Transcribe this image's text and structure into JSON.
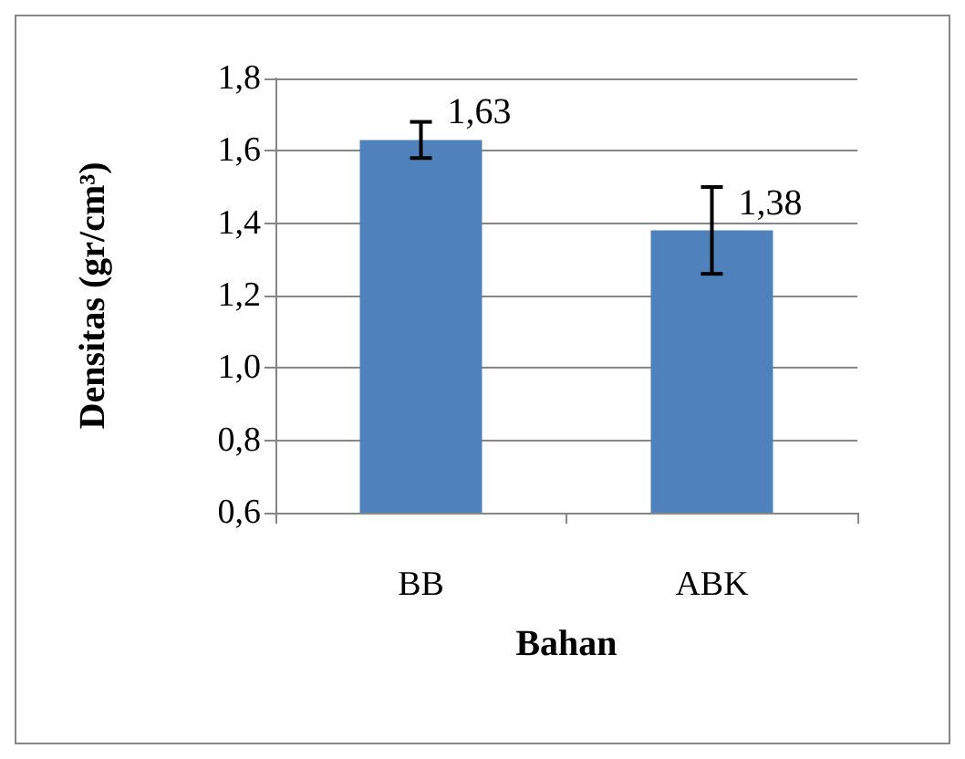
{
  "chart_data": {
    "type": "bar",
    "categories": [
      "BB",
      "ABK"
    ],
    "values": [
      1.63,
      1.38
    ],
    "color": "#4f81bd",
    "errors": [
      0.05,
      0.12
    ],
    "value_labels": [
      "1,63",
      "1,38"
    ],
    "xlabel": "Bahan",
    "ylabel": "Densitas (gr/cm³)",
    "ylim": [
      0.6,
      1.8
    ],
    "yticks": [
      {
        "value": 0.6,
        "label": "0,6"
      },
      {
        "value": 0.8,
        "label": "0,8"
      },
      {
        "value": 1.0,
        "label": "1,0"
      },
      {
        "value": 1.2,
        "label": "1,2"
      },
      {
        "value": 1.4,
        "label": "1,4"
      },
      {
        "value": 1.6,
        "label": "1,6"
      },
      {
        "value": 1.8,
        "label": "1,8"
      }
    ],
    "grid": "y"
  }
}
